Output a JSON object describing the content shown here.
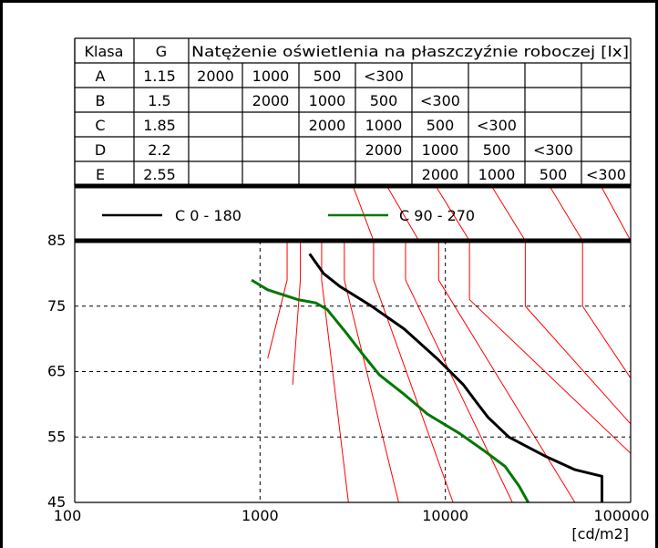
{
  "chart_data": {
    "type": "line",
    "table": {
      "headers": {
        "class": "Klasa",
        "g": "G",
        "illuminance": "Natężenie oświetlenia na płaszczyźnie roboczej [lx]"
      },
      "rows": [
        {
          "class": "A",
          "g": "1.15",
          "cells": [
            "2000",
            "1000",
            "500",
            "<300",
            "",
            "",
            "",
            ""
          ]
        },
        {
          "class": "B",
          "g": "1.5",
          "cells": [
            "",
            "2000",
            "1000",
            "500",
            "<300",
            "",
            "",
            ""
          ]
        },
        {
          "class": "C",
          "g": "1.85",
          "cells": [
            "",
            "",
            "2000",
            "1000",
            "500",
            "<300",
            "",
            ""
          ]
        },
        {
          "class": "D",
          "g": "2.2",
          "cells": [
            "",
            "",
            "",
            "2000",
            "1000",
            "500",
            "<300",
            ""
          ]
        },
        {
          "class": "E",
          "g": "2.55",
          "cells": [
            "",
            "",
            "",
            "",
            "2000",
            "1000",
            "500",
            "<300"
          ]
        }
      ]
    },
    "legend": [
      {
        "label": "C 0 - 180",
        "color": "#000000"
      },
      {
        "label": "C 90 - 270",
        "color": "#007800"
      }
    ],
    "x_axis": {
      "scale": "log",
      "range": [
        100,
        100000
      ],
      "tick_labels": [
        "100",
        "1000",
        "10000",
        "100000"
      ],
      "unit": "[cd/m2]"
    },
    "y_axis": {
      "range": [
        45,
        85
      ],
      "tick_labels": [
        "45",
        "55",
        "65",
        "75",
        "85"
      ]
    },
    "series": [
      {
        "name": "C 0 - 180",
        "color": "#000000",
        "points": [
          [
            1850,
            83
          ],
          [
            2200,
            80
          ],
          [
            2700,
            78
          ],
          [
            4000,
            75
          ],
          [
            6000,
            71.5
          ],
          [
            9000,
            67
          ],
          [
            12500,
            63
          ],
          [
            15000,
            60
          ],
          [
            17000,
            58
          ],
          [
            22000,
            55
          ],
          [
            35000,
            52
          ],
          [
            50000,
            50
          ],
          [
            70000,
            49
          ],
          [
            70000,
            45
          ]
        ]
      },
      {
        "name": "C 90 - 270",
        "color": "#007800",
        "points": [
          [
            900,
            79
          ],
          [
            1100,
            77.5
          ],
          [
            1600,
            76
          ],
          [
            2000,
            75.5
          ],
          [
            2300,
            74.5
          ],
          [
            2900,
            71
          ],
          [
            3500,
            68
          ],
          [
            4400,
            64.5
          ],
          [
            6000,
            61.5
          ],
          [
            8000,
            58.5
          ],
          [
            12000,
            55.5
          ],
          [
            16000,
            53
          ],
          [
            21000,
            50.5
          ],
          [
            25000,
            47.5
          ],
          [
            28000,
            45
          ]
        ]
      }
    ],
    "reference_lines": {
      "top_y": 85,
      "lines": [
        {
          "top_x": 1400,
          "kink_x": 1400,
          "kink_y": 79,
          "end_x": 1100,
          "end_y": 67
        },
        {
          "top_x": 1650,
          "kink_x": 1650,
          "kink_y": 79,
          "end_x": 1500,
          "end_y": 63
        },
        {
          "top_x": 2150,
          "kink_x": 2150,
          "kink_y": 79,
          "end_x": 3000,
          "end_y": 45
        },
        {
          "top_x": 2850,
          "kink_x": 2850,
          "kink_y": 79,
          "end_x": 5600,
          "end_y": 45
        },
        {
          "top_x": 4100,
          "kink_x": 4100,
          "kink_y": 79,
          "end_x": 11000,
          "end_y": 45
        },
        {
          "top_x": 6100,
          "kink_x": 6100,
          "kink_y": 79,
          "end_x": 23000,
          "end_y": 45
        },
        {
          "top_x": 9200,
          "kink_x": 9200,
          "kink_y": 79,
          "end_x": 50000,
          "end_y": 45
        },
        {
          "top_x": 13500,
          "kink_x": 13500,
          "kink_y": 76,
          "end_x": 100000,
          "end_y": 52.5
        },
        {
          "top_x": 27000,
          "kink_x": 27000,
          "kink_y": 75,
          "end_x": 100000,
          "end_y": 57
        },
        {
          "top_x": 55000,
          "kink_x": 55000,
          "kink_y": 75,
          "end_x": 100000,
          "end_y": 64
        },
        {
          "top_x": 3200,
          "kink_x": 4100,
          "kink_y": 85,
          "end_x": 4100,
          "end_y": 85
        },
        {
          "top_x": 4900,
          "kink_x": 7200,
          "kink_y": 85,
          "end_x": 7200,
          "end_y": 85
        },
        {
          "top_x": 9000,
          "kink_x": 13500,
          "kink_y": 85,
          "end_x": 13500,
          "end_y": 85
        },
        {
          "top_x": 18000,
          "kink_x": 27000,
          "kink_y": 85,
          "end_x": 27000,
          "end_y": 85
        },
        {
          "top_x": 37000,
          "kink_x": 55000,
          "kink_y": 85,
          "end_x": 55000,
          "end_y": 85
        },
        {
          "top_x": 70000,
          "kink_x": 100000,
          "kink_y": 85,
          "end_x": 100000,
          "end_y": 85
        }
      ],
      "color": "#ff0000"
    },
    "grid": true
  }
}
